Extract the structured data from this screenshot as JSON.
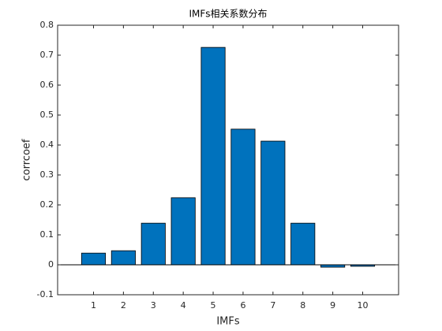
{
  "chart_data": {
    "type": "bar",
    "title": "IMFs相关系数分布",
    "xlabel": "IMFs",
    "ylabel": "corrcoef",
    "x": [
      1,
      2,
      3,
      4,
      5,
      6,
      7,
      8,
      9,
      10
    ],
    "values": [
      0.039,
      0.047,
      0.139,
      0.224,
      0.726,
      0.453,
      0.413,
      0.139,
      -0.008,
      -0.005
    ],
    "color": "#0072bd",
    "xlim": [
      -0.2,
      11.2
    ],
    "xticks": [
      1,
      2,
      3,
      4,
      5,
      6,
      7,
      8,
      9,
      10
    ],
    "ylim": [
      -0.1,
      0.8
    ],
    "yticks": [
      -0.1,
      0,
      0.1,
      0.2,
      0.3,
      0.4,
      0.5,
      0.6,
      0.7,
      0.8
    ]
  }
}
